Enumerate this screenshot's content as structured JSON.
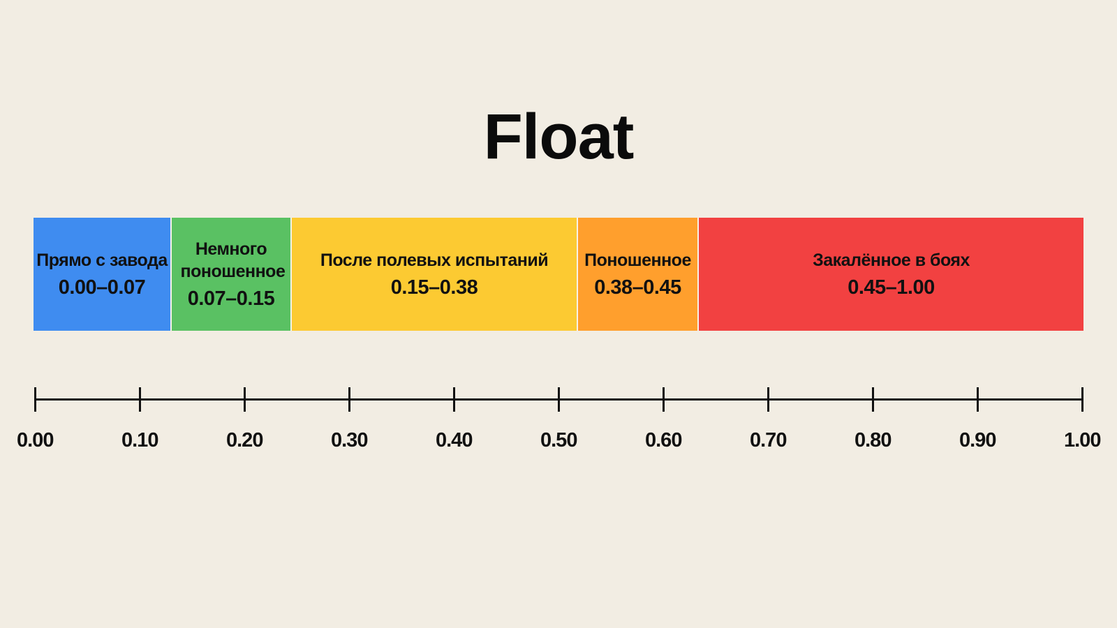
{
  "title": "Float",
  "scale": {
    "min": 0,
    "max": 1
  },
  "segments": [
    {
      "label": "Прямо с завода",
      "range": "0.00–0.07",
      "start": 0.0,
      "end": 0.13,
      "color": "#3f8cf0"
    },
    {
      "label": "Немного поношенное",
      "range": "0.07–0.15",
      "start": 0.13,
      "end": 0.245,
      "color": "#5ac163"
    },
    {
      "label": "После полевых испытаний",
      "range": "0.15–0.38",
      "start": 0.245,
      "end": 0.517,
      "color": "#fcca32"
    },
    {
      "label": "Поношенное",
      "range": "0.38–0.45",
      "start": 0.517,
      "end": 0.632,
      "color": "#ff9f2d"
    },
    {
      "label": "Закалённое в боях",
      "range": "0.45–1.00",
      "start": 0.632,
      "end": 1.0,
      "color": "#f24141"
    }
  ],
  "ticks": [
    {
      "label": "0.00",
      "value": 0.0
    },
    {
      "label": "0.10",
      "value": 0.1
    },
    {
      "label": "0.20",
      "value": 0.2
    },
    {
      "label": "0.30",
      "value": 0.3
    },
    {
      "label": "0.40",
      "value": 0.4
    },
    {
      "label": "0.50",
      "value": 0.5
    },
    {
      "label": "0.60",
      "value": 0.6
    },
    {
      "label": "0.70",
      "value": 0.7
    },
    {
      "label": "0.80",
      "value": 0.8
    },
    {
      "label": "0.90",
      "value": 0.9
    },
    {
      "label": "1.00",
      "value": 1.0
    }
  ]
}
